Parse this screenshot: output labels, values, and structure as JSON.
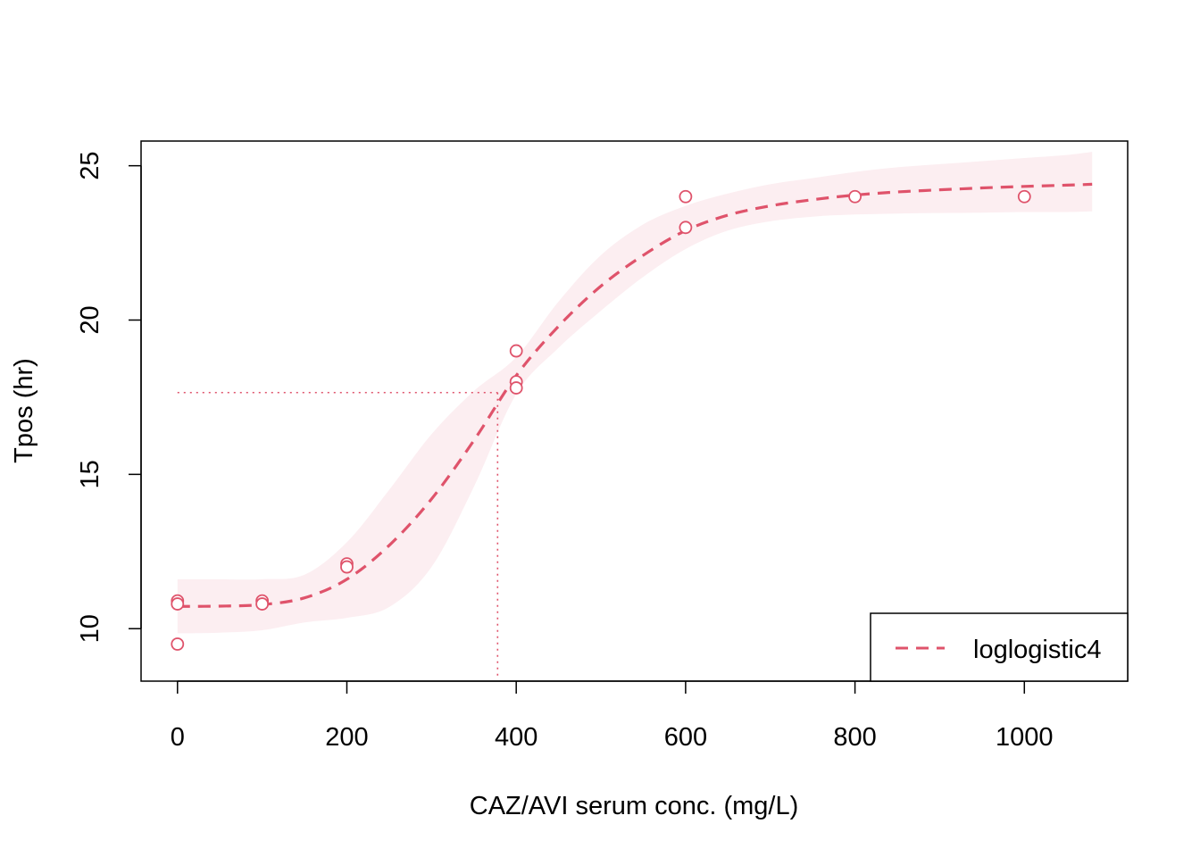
{
  "chart_data": {
    "type": "scatter",
    "title": "",
    "xlabel": "CAZ/AVI serum conc. (mg/L)",
    "ylabel": "Tpos (hr)",
    "xlim": [
      -43,
      1122
    ],
    "ylim": [
      8.3,
      25.8
    ],
    "x_ticks": [
      0,
      200,
      400,
      600,
      800,
      1000
    ],
    "x_tick_labels": [
      "0",
      "200",
      "400",
      "600",
      "800",
      "1000"
    ],
    "y_ticks": [
      10,
      15,
      20,
      25
    ],
    "y_tick_labels": [
      "10",
      "15",
      "20",
      "25"
    ],
    "points": [
      {
        "x": 0,
        "y": 10.9
      },
      {
        "x": 0,
        "y": 10.8
      },
      {
        "x": 0,
        "y": 9.5
      },
      {
        "x": 100,
        "y": 10.9
      },
      {
        "x": 100,
        "y": 10.8
      },
      {
        "x": 200,
        "y": 12.1
      },
      {
        "x": 200,
        "y": 12.0
      },
      {
        "x": 400,
        "y": 19.0
      },
      {
        "x": 400,
        "y": 18.0
      },
      {
        "x": 400,
        "y": 17.8
      },
      {
        "x": 600,
        "y": 24.0
      },
      {
        "x": 600,
        "y": 23.0
      },
      {
        "x": 800,
        "y": 24.0
      },
      {
        "x": 1000,
        "y": 24.0
      }
    ],
    "fit_curve": {
      "name": "loglogistic4",
      "x": [
        0,
        50,
        100,
        150,
        200,
        250,
        300,
        350,
        400,
        450,
        500,
        550,
        600,
        650,
        700,
        750,
        800,
        850,
        900,
        950,
        1000,
        1050,
        1080
      ],
      "y": [
        10.72,
        10.73,
        10.78,
        11.0,
        11.6,
        12.7,
        14.2,
        16.1,
        18.2,
        19.8,
        21.1,
        22.1,
        22.9,
        23.4,
        23.7,
        23.9,
        24.05,
        24.15,
        24.22,
        24.28,
        24.33,
        24.37,
        24.4
      ],
      "lower": [
        9.85,
        9.87,
        9.95,
        10.2,
        10.35,
        10.7,
        12.0,
        14.6,
        17.6,
        19.1,
        20.3,
        21.4,
        22.3,
        22.9,
        23.2,
        23.35,
        23.42,
        23.45,
        23.47,
        23.48,
        23.5,
        23.5,
        23.52
      ],
      "upper": [
        11.6,
        11.6,
        11.6,
        11.75,
        12.8,
        14.5,
        16.3,
        17.7,
        18.8,
        20.6,
        22.1,
        23.1,
        23.7,
        24.1,
        24.4,
        24.6,
        24.8,
        24.95,
        25.05,
        25.15,
        25.25,
        25.35,
        25.45
      ]
    },
    "reference_lines": {
      "x": 378,
      "y": 17.65
    },
    "colors": {
      "series": "#DF536B",
      "band": "#FCEEF1",
      "axis": "#000000"
    },
    "grid": false,
    "legend": {
      "position": "bottom-right",
      "entries": [
        "loglogistic4"
      ]
    }
  }
}
